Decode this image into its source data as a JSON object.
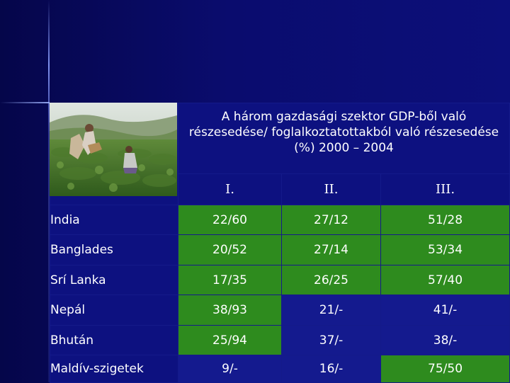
{
  "slide": {
    "caption": "A három gazdasági szektor GDP-ből való részesedése/ foglalkoztatottakból való részesedése (%) 2000 – 2004",
    "colors": {
      "background": "#0a0c6e",
      "cell_green": "#2e8b1e",
      "cell_blue": "#141a8e"
    }
  },
  "table": {
    "headers": [
      "I.",
      "II.",
      "III."
    ],
    "rows": [
      {
        "country": "India",
        "values": [
          "22/60",
          "27/12",
          "51/28"
        ]
      },
      {
        "country": "Banglades",
        "values": [
          "20/52",
          "27/14",
          "53/34"
        ]
      },
      {
        "country": "Srí Lanka",
        "values": [
          "17/35",
          "26/25",
          "57/40"
        ]
      },
      {
        "country": "Nepál",
        "values": [
          "38/93",
          "21/-",
          "41/-"
        ]
      },
      {
        "country": "Bhután",
        "values": [
          "25/94",
          "37/-",
          "38/-"
        ]
      },
      {
        "country": "Maldív-szigetek",
        "values": [
          "9/-",
          "16/-",
          "75/50"
        ]
      }
    ]
  }
}
